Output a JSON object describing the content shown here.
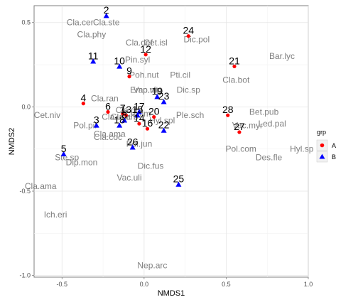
{
  "chart_data": {
    "type": "scatter",
    "title": "",
    "xlabel": "NMDS1",
    "ylabel": "NMDS2",
    "xlim": [
      -0.67,
      1.0
    ],
    "ylim": [
      -1.01,
      0.6
    ],
    "xticks": [
      -0.5,
      0.0,
      0.5,
      1.0
    ],
    "yticks": [
      -1.0,
      -0.5,
      0.0,
      0.5
    ],
    "xtick_labels": [
      "-0.5",
      "0.0",
      "0.5",
      "1.0"
    ],
    "ytick_labels": [
      "-1.0",
      "-0.5",
      "0.0",
      "0.5"
    ],
    "grid": true,
    "legend": {
      "title": "grp",
      "position": "right",
      "entries": [
        {
          "label": "A",
          "color": "#ff0000",
          "shape": "circle"
        },
        {
          "label": "B",
          "color": "#0000ff",
          "shape": "triangle"
        }
      ]
    },
    "series": [
      {
        "name": "A",
        "color": "#ff0000",
        "shape": "circle",
        "points": [
          {
            "site": "4",
            "x": -0.37,
            "y": 0.02
          },
          {
            "site": "6",
            "x": -0.22,
            "y": -0.03
          },
          {
            "site": "9",
            "x": -0.09,
            "y": 0.18
          },
          {
            "site": "12",
            "x": 0.01,
            "y": 0.31
          },
          {
            "site": "14",
            "x": -0.03,
            "y": -0.1
          },
          {
            "site": "16",
            "x": 0.02,
            "y": -0.13
          },
          {
            "site": "20",
            "x": 0.06,
            "y": -0.06
          },
          {
            "site": "21",
            "x": 0.55,
            "y": 0.24
          },
          {
            "site": "24",
            "x": 0.27,
            "y": 0.42
          },
          {
            "site": "27",
            "x": 0.58,
            "y": -0.15
          },
          {
            "site": "28",
            "x": 0.51,
            "y": -0.05
          },
          {
            "site": "7",
            "x": -0.13,
            "y": -0.04
          },
          {
            "site": "13",
            "x": -0.11,
            "y": -0.05
          }
        ]
      },
      {
        "name": "B",
        "color": "#0000ff",
        "shape": "triangle",
        "points": [
          {
            "site": "2",
            "x": -0.23,
            "y": 0.54
          },
          {
            "site": "3",
            "x": -0.29,
            "y": -0.11
          },
          {
            "site": "5",
            "x": -0.49,
            "y": -0.28
          },
          {
            "site": "10",
            "x": -0.15,
            "y": 0.24
          },
          {
            "site": "11",
            "x": -0.31,
            "y": 0.27
          },
          {
            "site": "15",
            "x": -0.04,
            "y": -0.05
          },
          {
            "site": "17",
            "x": -0.03,
            "y": -0.03
          },
          {
            "site": "18",
            "x": -0.15,
            "y": -0.11
          },
          {
            "site": "19",
            "x": 0.08,
            "y": 0.06
          },
          {
            "site": "22",
            "x": 0.12,
            "y": -0.14
          },
          {
            "site": "23",
            "x": 0.12,
            "y": 0.03
          },
          {
            "site": "25",
            "x": 0.21,
            "y": -0.46
          },
          {
            "site": "26",
            "x": -0.07,
            "y": -0.24
          },
          {
            "site": "8",
            "x": -0.12,
            "y": -0.08
          }
        ]
      }
    ],
    "species": [
      {
        "label": "Cla.cer",
        "x": -0.39,
        "y": 0.5
      },
      {
        "label": "Cla.ste",
        "x": -0.23,
        "y": 0.5
      },
      {
        "label": "Cla.phy",
        "x": -0.32,
        "y": 0.43
      },
      {
        "label": "Cla.def",
        "x": -0.03,
        "y": 0.38
      },
      {
        "label": "Cet.isl",
        "x": 0.07,
        "y": 0.38
      },
      {
        "label": "Dic.pol",
        "x": 0.32,
        "y": 0.4
      },
      {
        "label": "Pin.syl",
        "x": -0.04,
        "y": 0.28
      },
      {
        "label": "Bar.lyc",
        "x": 0.84,
        "y": 0.3
      },
      {
        "label": "Poh.nut",
        "x": 0.0,
        "y": 0.19
      },
      {
        "label": "Pti.cil",
        "x": 0.22,
        "y": 0.19
      },
      {
        "label": "Cla.bot",
        "x": 0.56,
        "y": 0.16
      },
      {
        "label": "Emp.nig",
        "x": 0.01,
        "y": 0.1
      },
      {
        "label": "Vac.vit",
        "x": 0.01,
        "y": 0.1
      },
      {
        "label": "Dic.sp",
        "x": 0.27,
        "y": 0.1
      },
      {
        "label": "Cla.ran",
        "x": -0.24,
        "y": 0.05
      },
      {
        "label": "Cet.niv",
        "x": -0.59,
        "y": -0.05
      },
      {
        "label": "Cla.gra",
        "x": -0.09,
        "y": -0.02
      },
      {
        "label": "Cla.fim",
        "x": -0.04,
        "y": -0.04
      },
      {
        "label": "Cla.unc",
        "x": -0.17,
        "y": -0.06
      },
      {
        "label": "Cla.arb",
        "x": -0.12,
        "y": -0.06
      },
      {
        "label": "Ple.sch",
        "x": 0.28,
        "y": -0.05
      },
      {
        "label": "Hyl.spl",
        "x": 0.11,
        "y": -0.08
      },
      {
        "label": "Bet.pub",
        "x": 0.73,
        "y": -0.03
      },
      {
        "label": "Pol.pil",
        "x": -0.36,
        "y": -0.11
      },
      {
        "label": "Cla.ama",
        "x": -0.21,
        "y": -0.16
      },
      {
        "label": "Cla.coc",
        "x": -0.22,
        "y": -0.18
      },
      {
        "label": "Pol.jun",
        "x": -0.03,
        "y": -0.22
      },
      {
        "label": "Vac.myr",
        "x": 0.63,
        "y": -0.11
      },
      {
        "label": "Led.pal",
        "x": 0.78,
        "y": -0.1
      },
      {
        "label": "Ste.sp",
        "x": -0.47,
        "y": -0.3
      },
      {
        "label": "Dip.mon",
        "x": -0.38,
        "y": -0.33
      },
      {
        "label": "Pol.com",
        "x": 0.59,
        "y": -0.25
      },
      {
        "label": "Hyl.sp",
        "x": 0.96,
        "y": -0.25
      },
      {
        "label": "Des.fle",
        "x": 0.76,
        "y": -0.3
      },
      {
        "label": "Dic.fus",
        "x": 0.04,
        "y": -0.35
      },
      {
        "label": "Vac.uli",
        "x": -0.09,
        "y": -0.42
      },
      {
        "label": "Cla.ama",
        "x": -0.63,
        "y": -0.47
      },
      {
        "label": "Ich.eri",
        "x": -0.54,
        "y": -0.64
      },
      {
        "label": "Nep.arc",
        "x": 0.05,
        "y": -0.94
      }
    ]
  }
}
